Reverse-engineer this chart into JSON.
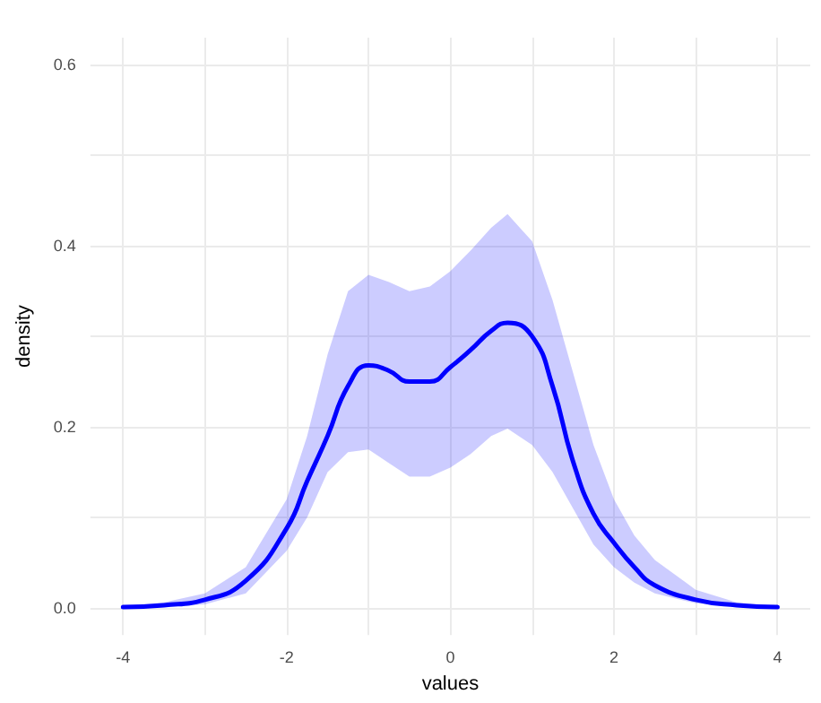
{
  "chart_data": {
    "type": "line",
    "xlabel": "values",
    "ylabel": "density",
    "xlim": [
      -4.4,
      4.4
    ],
    "ylim": [
      -0.03,
      0.63
    ],
    "xticks": [
      -4,
      {
        "value": -3,
        "label": null
      },
      -2,
      {
        "value": -1,
        "label": null
      },
      0,
      {
        "value": 1,
        "label": null
      },
      2,
      {
        "value": 3,
        "label": null
      },
      4
    ],
    "yticks": [
      {
        "value": 0,
        "label": "0.0"
      },
      {
        "value": 0.1,
        "label": null
      },
      {
        "value": 0.2,
        "label": "0.2"
      },
      {
        "value": 0.3,
        "label": null
      },
      {
        "value": 0.4,
        "label": "0.4"
      },
      {
        "value": 0.5,
        "label": null
      },
      {
        "value": 0.6,
        "label": "0.6"
      }
    ],
    "grid": true,
    "marker": "none",
    "line_style": "solid",
    "series": [
      {
        "color": "#0000ff",
        "x": [
          -4,
          -3.5,
          -3,
          -2.5,
          -2,
          -1.75,
          -1.5,
          -1.25,
          -1,
          -0.75,
          -0.5,
          -0.25,
          0,
          0.25,
          0.5,
          0.7,
          1,
          1.25,
          1.5,
          1.75,
          2,
          2.25,
          2.5,
          3,
          3.5,
          4
        ],
        "values": [
          0.001,
          0.003,
          0.009,
          0.03,
          0.088,
          0.14,
          0.19,
          0.245,
          0.268,
          0.262,
          0.25,
          0.25,
          0.266,
          0.285,
          0.306,
          0.315,
          0.3,
          0.245,
          0.162,
          0.104,
          0.072,
          0.045,
          0.025,
          0.009,
          0.003,
          0.001
        ],
        "lower": [
          0,
          0.001,
          0.004,
          0.016,
          0.063,
          0.1,
          0.15,
          0.172,
          0.175,
          0.16,
          0.145,
          0.145,
          0.155,
          0.17,
          0.19,
          0.198,
          0.18,
          0.15,
          0.11,
          0.07,
          0.045,
          0.028,
          0.016,
          0.005,
          0.001,
          0
        ],
        "upper": [
          0.002,
          0.006,
          0.016,
          0.045,
          0.12,
          0.19,
          0.28,
          0.35,
          0.368,
          0.36,
          0.35,
          0.355,
          0.372,
          0.395,
          0.42,
          0.435,
          0.405,
          0.34,
          0.26,
          0.18,
          0.12,
          0.08,
          0.053,
          0.02,
          0.006,
          0.002
        ]
      }
    ]
  }
}
